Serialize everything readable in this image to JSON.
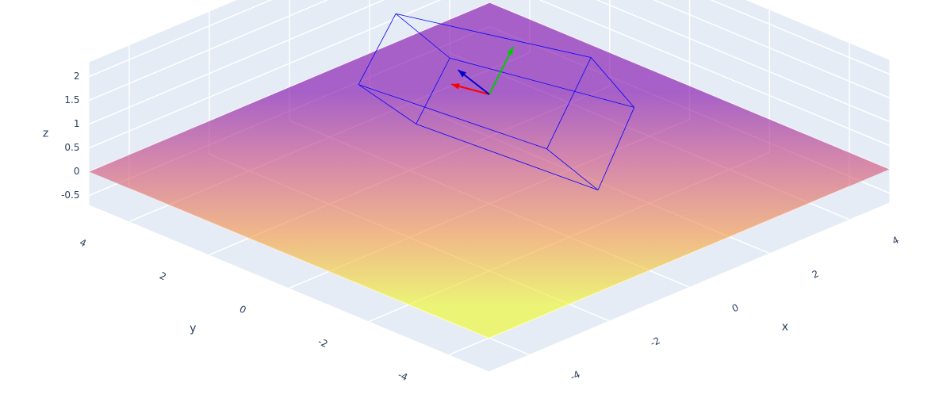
{
  "chart_data": {
    "type": "surface3d",
    "xaxis_title": "x",
    "yaxis_title": "y",
    "zaxis_title": "z",
    "xlim": [
      -5,
      5
    ],
    "ylim": [
      -5,
      5
    ],
    "zlim": [
      -0.7,
      2.3
    ],
    "xticks": [
      -4,
      -2,
      0,
      2,
      4
    ],
    "yticks": [
      -4,
      -2,
      0,
      2,
      4
    ],
    "zticks": [
      -0.5,
      0,
      0.5,
      1,
      1.5,
      2
    ],
    "grid": true,
    "background": "#e5ecf6",
    "surface": {
      "x": [
        -5,
        5
      ],
      "y": [
        -5,
        5
      ],
      "z": [
        [
          0,
          0
        ],
        [
          0,
          0
        ]
      ],
      "colorscale": [
        "#f0f921",
        "#f89540",
        "#cc4778",
        "#7e03a8"
      ],
      "opacity": 0.6
    },
    "box": {
      "color": "#0000ff",
      "x": [
        0.39,
        2.36,
        2.26,
        -0.06,
        -1.33,
        0.59,
        -0.94,
        0.2
      ],
      "y": [
        2.73,
        -0.18,
        -1.36,
        -1.5,
        1.94,
        1.58,
        0.89,
        -2.52
      ],
      "z": [
        2.2,
        1.6,
        1.0,
        1.0,
        1.6,
        1.6,
        1.0,
        0.4
      ],
      "edges": [
        [
          0,
          1
        ],
        [
          0,
          4
        ],
        [
          0,
          5
        ],
        [
          1,
          2
        ],
        [
          1,
          3
        ],
        [
          2,
          5
        ],
        [
          2,
          7
        ],
        [
          3,
          4
        ],
        [
          3,
          7
        ],
        [
          4,
          6
        ],
        [
          5,
          6
        ],
        [
          6,
          7
        ]
      ]
    },
    "arrows": [
      {
        "color": "#ff0000",
        "origin": [
          0,
          0,
          1.6
        ],
        "vector": [
          -0.17,
          0.78,
          0
        ]
      },
      {
        "color": "#00cc00",
        "origin": [
          0,
          0,
          1.6
        ],
        "vector": [
          0.3,
          -0.3,
          1
        ]
      },
      {
        "color": "#0000cc",
        "origin": [
          0,
          0,
          1.6
        ],
        "vector": [
          -0.54,
          0.24,
          0.62
        ]
      }
    ]
  }
}
